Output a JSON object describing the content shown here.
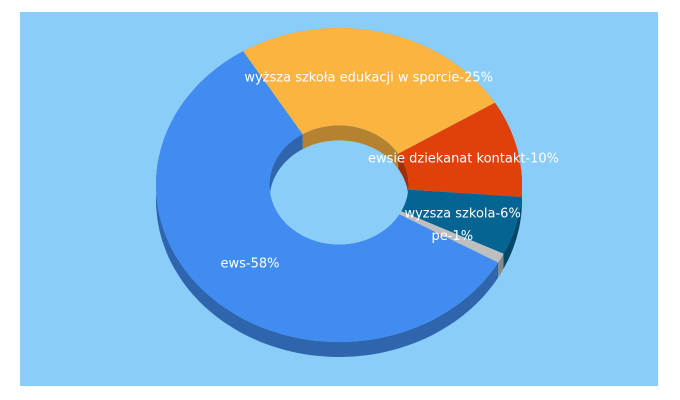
{
  "chart_data": {
    "type": "pie",
    "style": "donut-3d",
    "values": [
      25,
      10,
      6,
      1,
      58
    ],
    "value_labels": [
      "wyższa szkoła edukacji w sporcie-25%",
      "ewsie dziekanat kontakt-10%",
      "wyzsza szkola-6%",
      "pe-1%",
      "ews-58%"
    ],
    "colors": [
      "#fcb441",
      "#e0400a",
      "#056492",
      "#bfbfbf",
      "#418cf0"
    ]
  }
}
